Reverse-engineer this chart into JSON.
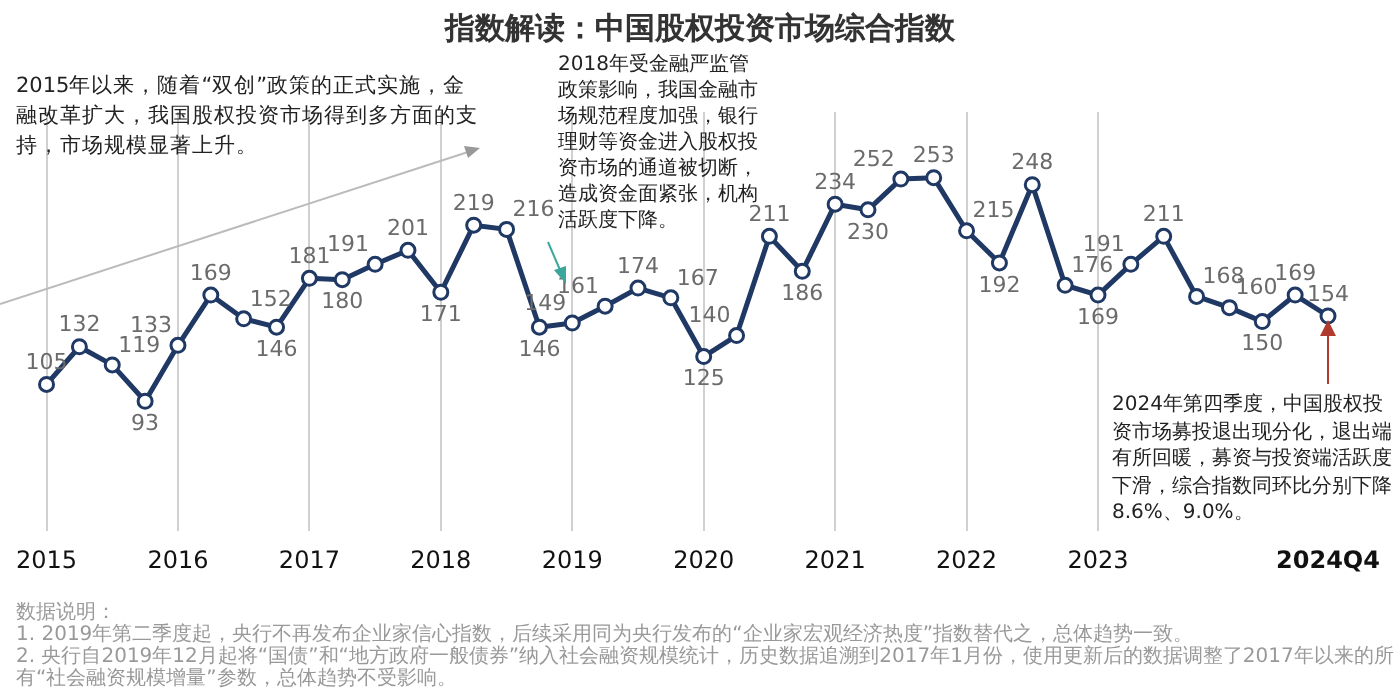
{
  "chart_data": {
    "type": "line",
    "title": "指数解读：中国股权投资市场综合指数",
    "categories": [
      "2015",
      null,
      null,
      null,
      "2016",
      null,
      null,
      null,
      "2017",
      null,
      null,
      null,
      "2018",
      null,
      null,
      null,
      "2019",
      null,
      null,
      null,
      "2020",
      null,
      null,
      null,
      "2021",
      null,
      null,
      null,
      "2022",
      null,
      null,
      null,
      "2023",
      null,
      null,
      null,
      null,
      null,
      null,
      "2024Q4"
    ],
    "series": [
      {
        "color": "#1f3864",
        "values": [
          105,
          132,
          119,
          93,
          133,
          169,
          152,
          146,
          181,
          180,
          191,
          201,
          171,
          219,
          216,
          146,
          149,
          161,
          174,
          167,
          125,
          140,
          211,
          186,
          234,
          230,
          252,
          253,
          215,
          192,
          248,
          176,
          169,
          191,
          211,
          168,
          160,
          150,
          169,
          154
        ]
      }
    ],
    "marker": "circle",
    "data_labels": true,
    "grid": "x",
    "annotations": [
      "2015年以来，随着“双创”政策的正式实施，金融改革扩大，我国股权投资市场得到多方面的支持，市场规模显著上升。",
      "2018年受金融严监管政策影响，我国金融市场规范程度加强，银行理财等资金进入股权投资市场的通道被切断，造成资金面紧张，机构活跃度下降。",
      "2024年第四季度，中国股权投资市场募投退出现分化，退出端有所回暖，募资与投资端活跃度下滑，综合指数同环比分别下降8.6%、9.0%。",
      "数据说明：",
      "1. 2019年第二季度起，央行不再发布企业家信心指数，后续采用同为央行发布的“企业家宏观经济热度”指数替代之，总体趋势一致。",
      "2. 央行自2019年12月起将“国债”和“地方政府一般债券”纳入社会融资规模统计，历史数据追溯到2017年1月份，使用更新后的数据调整了2017年以来的所有“社会融资规模增量”参数，总体趋势不受影响。"
    ]
  }
}
